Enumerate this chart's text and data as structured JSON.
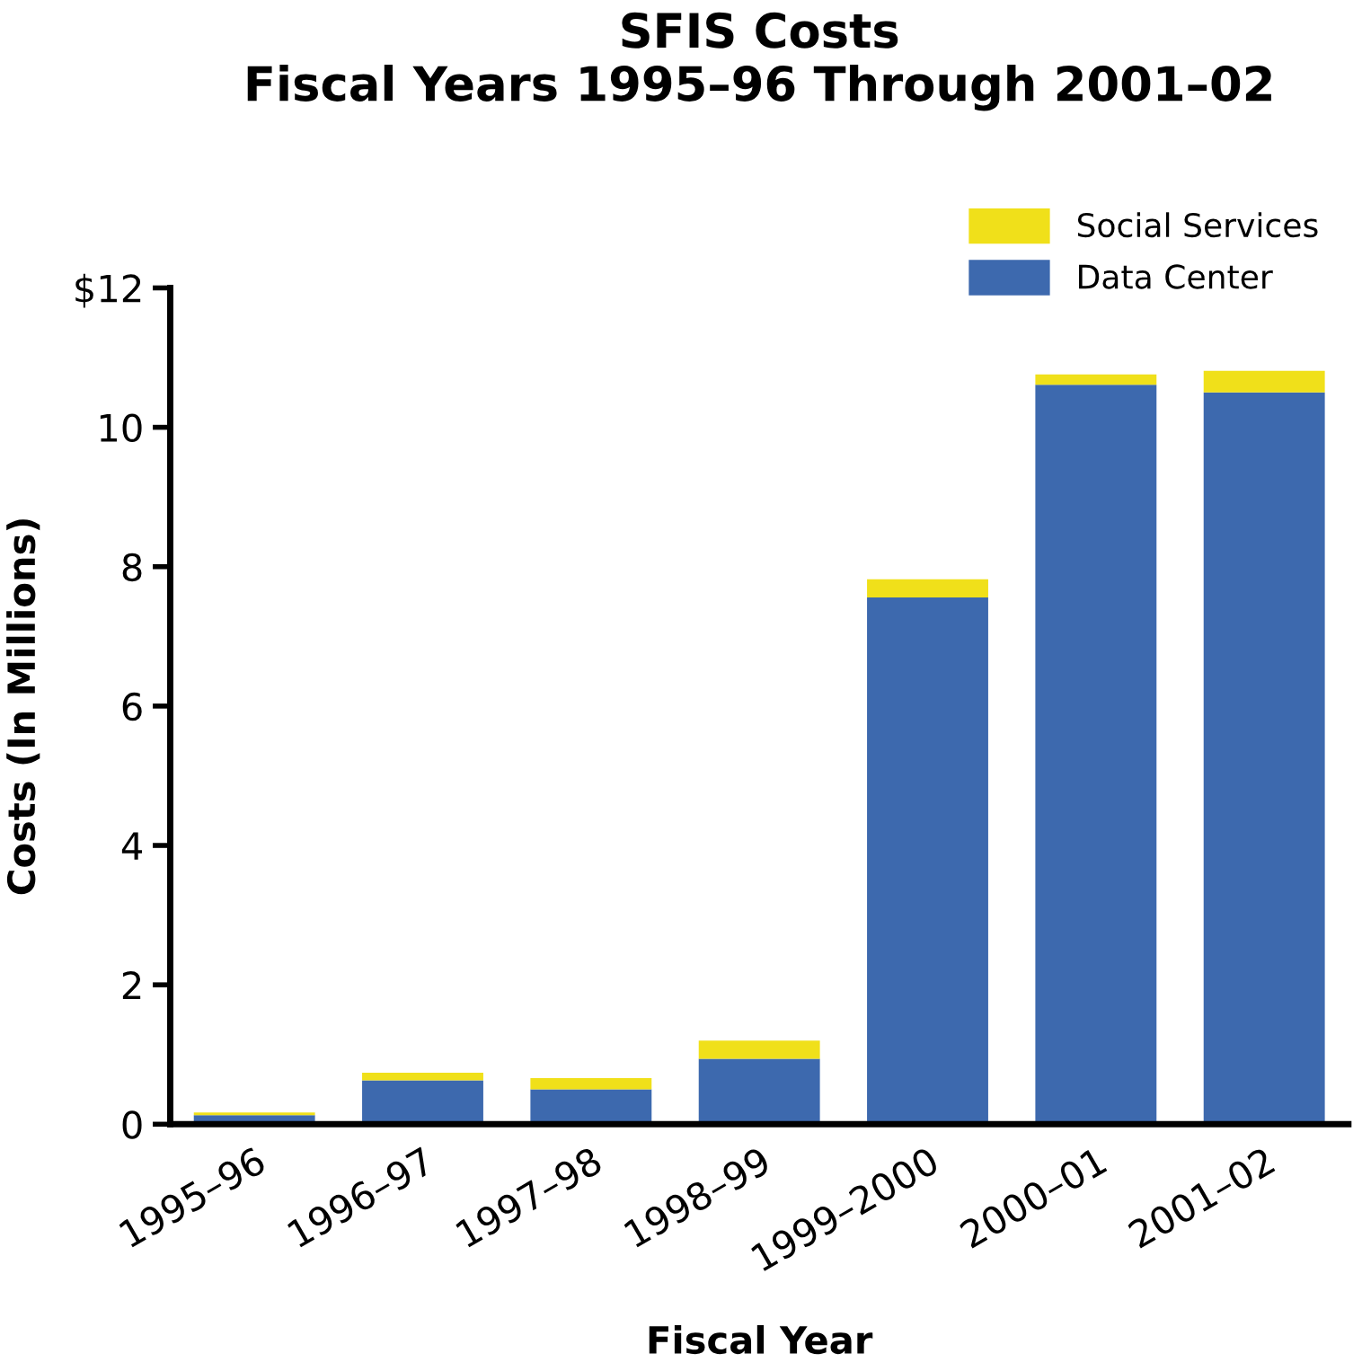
{
  "chart_data": {
    "type": "bar",
    "title": "SFIS Costs\nFiscal Years 1995–96 Through 2001–02",
    "xlabel": "Fiscal Year",
    "ylabel": "Costs (In Millions)",
    "categories": [
      "1995–96",
      "1996–97",
      "1997–98",
      "1998–99",
      "1999–2000",
      "2000–01",
      "2001–02"
    ],
    "stacked": true,
    "series": [
      {
        "name": "Data Center",
        "color": "#3d69ae",
        "values": [
          0.13,
          0.63,
          0.5,
          0.94,
          7.56,
          10.61,
          10.5
        ]
      },
      {
        "name": "Social Services",
        "color": "#f0e01a",
        "values": [
          0.04,
          0.11,
          0.16,
          0.26,
          0.26,
          0.15,
          0.31
        ]
      }
    ],
    "ylim": [
      0,
      12
    ],
    "yticks": [
      0,
      2,
      4,
      6,
      8,
      10,
      {
        "value": 12,
        "label": "$12"
      }
    ],
    "grid": false,
    "legend": "top right"
  }
}
